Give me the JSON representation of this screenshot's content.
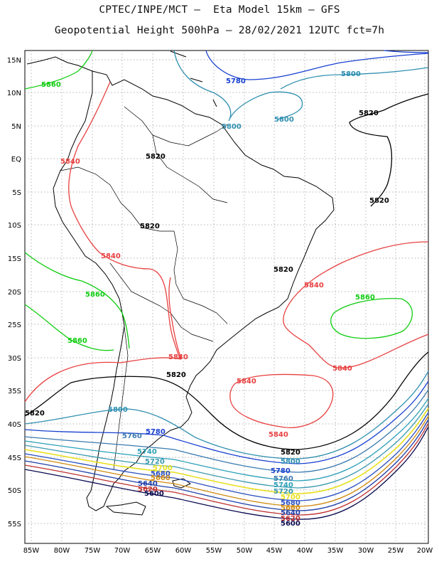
{
  "title_line1": "CPTEC/INPE/MCT –  Eta Model 15km – GFS",
  "title_line2": "Geopotential Height 500hPa – 28/02/2021 12UTC fct=7h",
  "axes": {
    "lat_ticks": [
      "15N",
      "10N",
      "5N",
      "EQ",
      "5S",
      "10S",
      "15S",
      "20S",
      "25S",
      "30S",
      "35S",
      "40S",
      "45S",
      "50S",
      "55S"
    ],
    "lon_ticks": [
      "85W",
      "80W",
      "75W",
      "70W",
      "65W",
      "60W",
      "55W",
      "50W",
      "45W",
      "40W",
      "35W",
      "30W",
      "25W",
      "20W"
    ]
  },
  "colors": {
    "5600": "#0a0a50",
    "5620": "#c03030",
    "5640": "#1f3fa8",
    "5660": "#d08a10",
    "5680": "#2a4fc0",
    "5700": "#e8e020",
    "5720": "#3a9ab0",
    "5740": "#2aa0b8",
    "5760": "#3a7ab0",
    "5780": "#1840d0",
    "5800": "#2f8fb0",
    "5820": "#000000",
    "5840": "#e84040",
    "5860": "#10cc10"
  },
  "contour_labels": [
    {
      "text": "5780",
      "level": "5780"
    },
    {
      "text": "5800",
      "level": "5800"
    },
    {
      "text": "5800",
      "level": "5800"
    },
    {
      "text": "5800",
      "level": "5800"
    },
    {
      "text": "5860",
      "level": "5860"
    },
    {
      "text": "5820",
      "level": "5820"
    },
    {
      "text": "5820",
      "level": "5820"
    },
    {
      "text": "5840",
      "level": "5840"
    },
    {
      "text": "5820",
      "level": "5820"
    },
    {
      "text": "5820",
      "level": "5820"
    },
    {
      "text": "5840",
      "level": "5840"
    },
    {
      "text": "5820",
      "level": "5820"
    },
    {
      "text": "5840",
      "level": "5840"
    },
    {
      "text": "5860",
      "level": "5860"
    },
    {
      "text": "5860",
      "level": "5860"
    },
    {
      "text": "5860",
      "level": "5860"
    },
    {
      "text": "5840",
      "level": "5840"
    },
    {
      "text": "5840",
      "level": "5840"
    },
    {
      "text": "5820",
      "level": "5820"
    },
    {
      "text": "5840",
      "level": "5840"
    },
    {
      "text": "5840",
      "level": "5840"
    },
    {
      "text": "5820",
      "level": "5820"
    },
    {
      "text": "5800",
      "level": "5800"
    },
    {
      "text": "5780",
      "level": "5780"
    },
    {
      "text": "5760",
      "level": "5760"
    },
    {
      "text": "5740",
      "level": "5740"
    },
    {
      "text": "5720",
      "level": "5720"
    },
    {
      "text": "5700",
      "level": "5700"
    },
    {
      "text": "5680",
      "level": "5680"
    },
    {
      "text": "5660",
      "level": "5660"
    },
    {
      "text": "5640",
      "level": "5640"
    },
    {
      "text": "5620",
      "level": "5620"
    },
    {
      "text": "5600",
      "level": "5600"
    },
    {
      "text": "5820",
      "level": "5820"
    },
    {
      "text": "5800",
      "level": "5800"
    },
    {
      "text": "5780",
      "level": "5780"
    },
    {
      "text": "5760",
      "level": "5760"
    },
    {
      "text": "5740",
      "level": "5740"
    },
    {
      "text": "5720",
      "level": "5720"
    },
    {
      "text": "5700",
      "level": "5700"
    },
    {
      "text": "5680",
      "level": "5680"
    },
    {
      "text": "5660",
      "level": "5660"
    },
    {
      "text": "5640",
      "level": "5640"
    },
    {
      "text": "5620",
      "level": "5620"
    },
    {
      "text": "5600",
      "level": "5600"
    }
  ]
}
